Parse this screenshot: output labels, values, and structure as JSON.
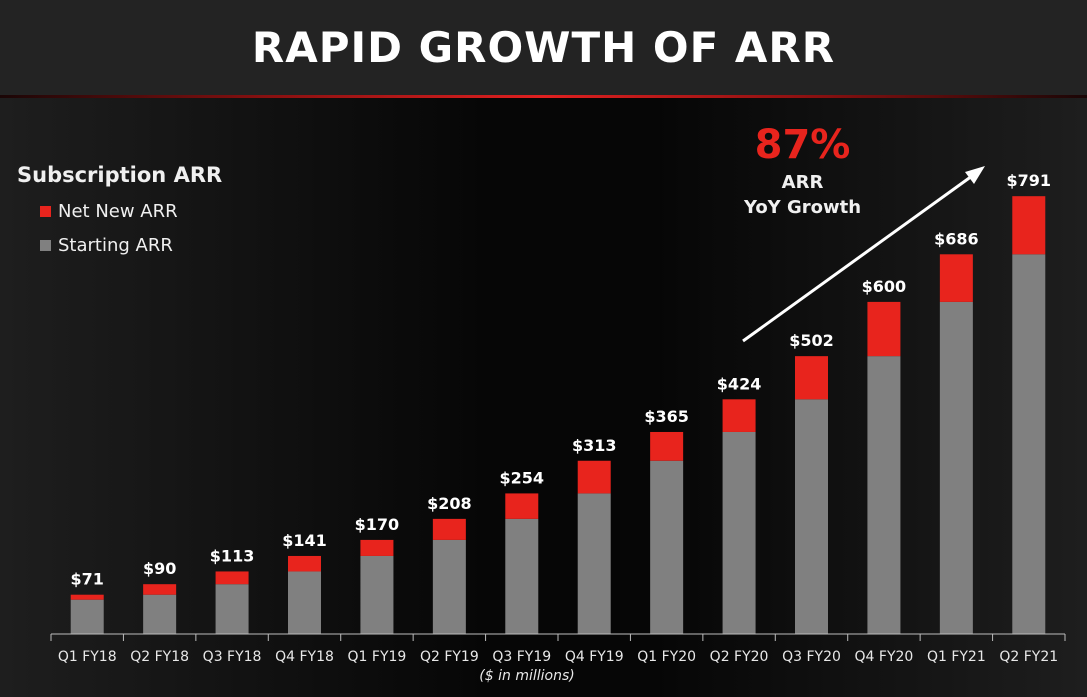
{
  "title": "RAPID GROWTH OF ARR",
  "legend": {
    "title": "Subscription ARR",
    "items": [
      {
        "label": "Net New ARR",
        "color": "#e8241d"
      },
      {
        "label": "Starting ARR",
        "color": "#808080"
      }
    ]
  },
  "growth": {
    "percent": "87%",
    "line1": "ARR",
    "line2": "YoY Growth"
  },
  "units_note": "($ in millions)",
  "chart_data": {
    "type": "bar",
    "stacked": true,
    "categories": [
      "Q1 FY18",
      "Q2 FY18",
      "Q3 FY18",
      "Q4 FY18",
      "Q1 FY19",
      "Q2 FY19",
      "Q3 FY19",
      "Q4 FY19",
      "Q1 FY20",
      "Q2 FY20",
      "Q3 FY20",
      "Q4 FY20",
      "Q1 FY21",
      "Q2 FY21"
    ],
    "series": [
      {
        "name": "Starting ARR",
        "color": "#808080",
        "values": [
          62,
          71,
          90,
          113,
          141,
          170,
          208,
          254,
          313,
          365,
          424,
          502,
          600,
          686
        ]
      },
      {
        "name": "Net New ARR",
        "color": "#e8241d",
        "values": [
          9,
          19,
          23,
          28,
          29,
          38,
          46,
          59,
          52,
          59,
          78,
          98,
          86,
          105
        ]
      }
    ],
    "totals": [
      71,
      90,
      113,
      141,
      170,
      208,
      254,
      313,
      365,
      424,
      502,
      600,
      686,
      791
    ],
    "total_labels": [
      "$71",
      "$90",
      "$113",
      "$141",
      "$170",
      "$208",
      "$254",
      "$313",
      "$365",
      "$424",
      "$502",
      "$600",
      "$686",
      "$791"
    ],
    "ylim": [
      0,
      800
    ],
    "xlabel": "($ in millions)",
    "ylabel": "",
    "grid": false,
    "legend_position": "top-left"
  }
}
